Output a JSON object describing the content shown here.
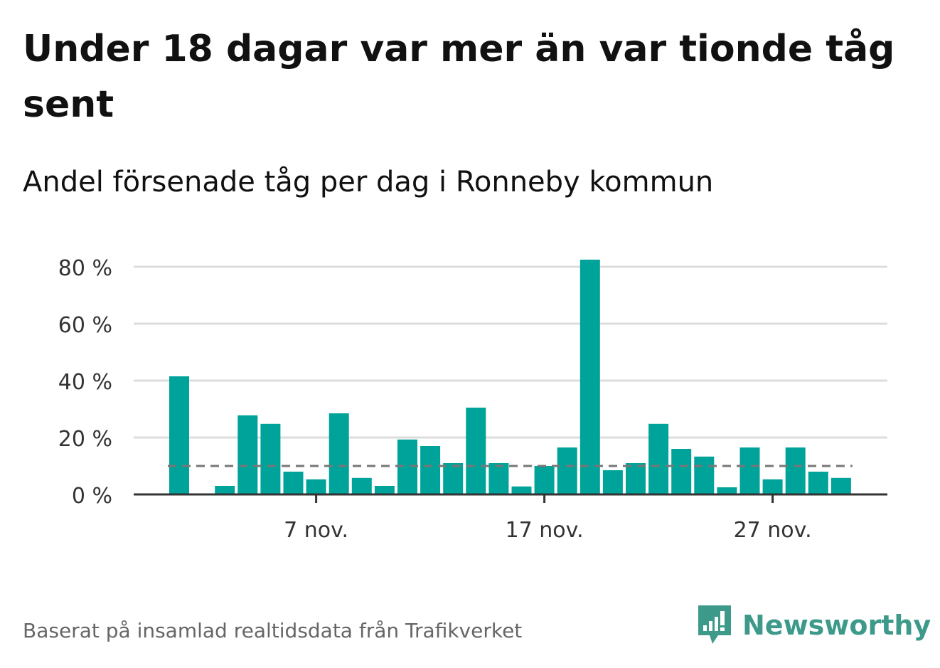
{
  "title": "Under 18 dagar var mer än var tionde tåg sent",
  "subtitle": "Andel försenade tåg per dag i Ronneby kommun",
  "source": "Baserat på insamlad realtidsdata från Trafikverket",
  "brand": {
    "name": "Newsworthy",
    "icon": "newsworthy-logo-icon",
    "color": "#3d9a8b"
  },
  "chart_data": {
    "type": "bar",
    "x_start": "1 nov.",
    "categories": [
      "1 nov.",
      "2 nov.",
      "3 nov.",
      "4 nov.",
      "5 nov.",
      "6 nov.",
      "7 nov.",
      "8 nov.",
      "9 nov.",
      "10 nov.",
      "11 nov.",
      "12 nov.",
      "13 nov.",
      "14 nov.",
      "15 nov.",
      "16 nov.",
      "17 nov.",
      "18 nov.",
      "19 nov.",
      "20 nov.",
      "21 nov.",
      "22 nov.",
      "23 nov.",
      "24 nov.",
      "25 nov.",
      "26 nov.",
      "27 nov.",
      "28 nov.",
      "29 nov.",
      "30 nov."
    ],
    "values": [
      41.5,
      null,
      3,
      27.8,
      24.8,
      8,
      5.3,
      28.5,
      5.8,
      3,
      19.3,
      17,
      11,
      30.5,
      11,
      2.8,
      10,
      16.5,
      82.5,
      8.5,
      11,
      24.8,
      16,
      13.3,
      2.5,
      16.5,
      5.3,
      16.5,
      8,
      5.8
    ],
    "reference_line": 10,
    "xticks": [
      "7 nov.",
      "17 nov.",
      "27 nov."
    ],
    "yticks": [
      "0 %",
      "20 %",
      "40 %",
      "60 %",
      "80 %"
    ],
    "ylim": [
      0,
      85
    ],
    "grid": true,
    "colors": {
      "bar": "#00a39a",
      "grid": "#dddddd",
      "axis": "#333333",
      "reference": "#777777"
    }
  }
}
